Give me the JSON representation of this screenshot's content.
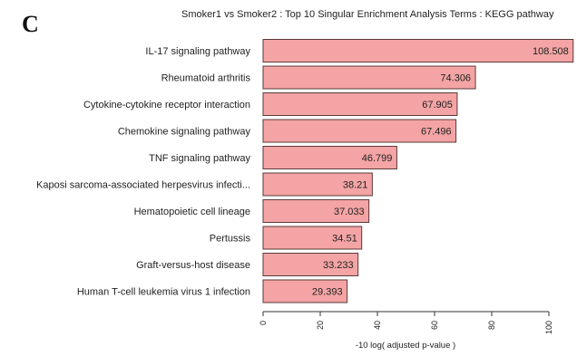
{
  "panel_letter": "C",
  "chart_data": {
    "type": "bar",
    "orientation": "horizontal",
    "title": "Smoker1 vs Smoker2 : Top 10 Singular Enrichment Analysis Terms : KEGG pathway",
    "xlabel": "-10 log( adjusted p-value )",
    "ylabel": "",
    "xlim": [
      0,
      100
    ],
    "xticks": [
      0,
      20,
      40,
      60,
      80,
      100
    ],
    "grid": false,
    "categories": [
      "IL-17 signaling pathway",
      "Rheumatoid arthritis",
      "Cytokine-cytokine receptor interaction",
      "Chemokine signaling pathway",
      "TNF signaling pathway",
      "Kaposi sarcoma-associated herpesvirus infecti...",
      "Hematopoietic cell lineage",
      "Pertussis",
      "Graft-versus-host disease",
      "Human T-cell leukemia virus 1 infection"
    ],
    "values": [
      108.508,
      74.306,
      67.905,
      67.496,
      46.799,
      38.21,
      37.033,
      34.51,
      33.233,
      29.393
    ],
    "value_labels": [
      "108.508",
      "74.306",
      "67.905",
      "67.496",
      "46.799",
      "38.21",
      "37.033",
      "34.51",
      "33.233",
      "29.393"
    ],
    "bar_color": "#f4a4a4",
    "bar_stroke": "#5a3a3a"
  }
}
